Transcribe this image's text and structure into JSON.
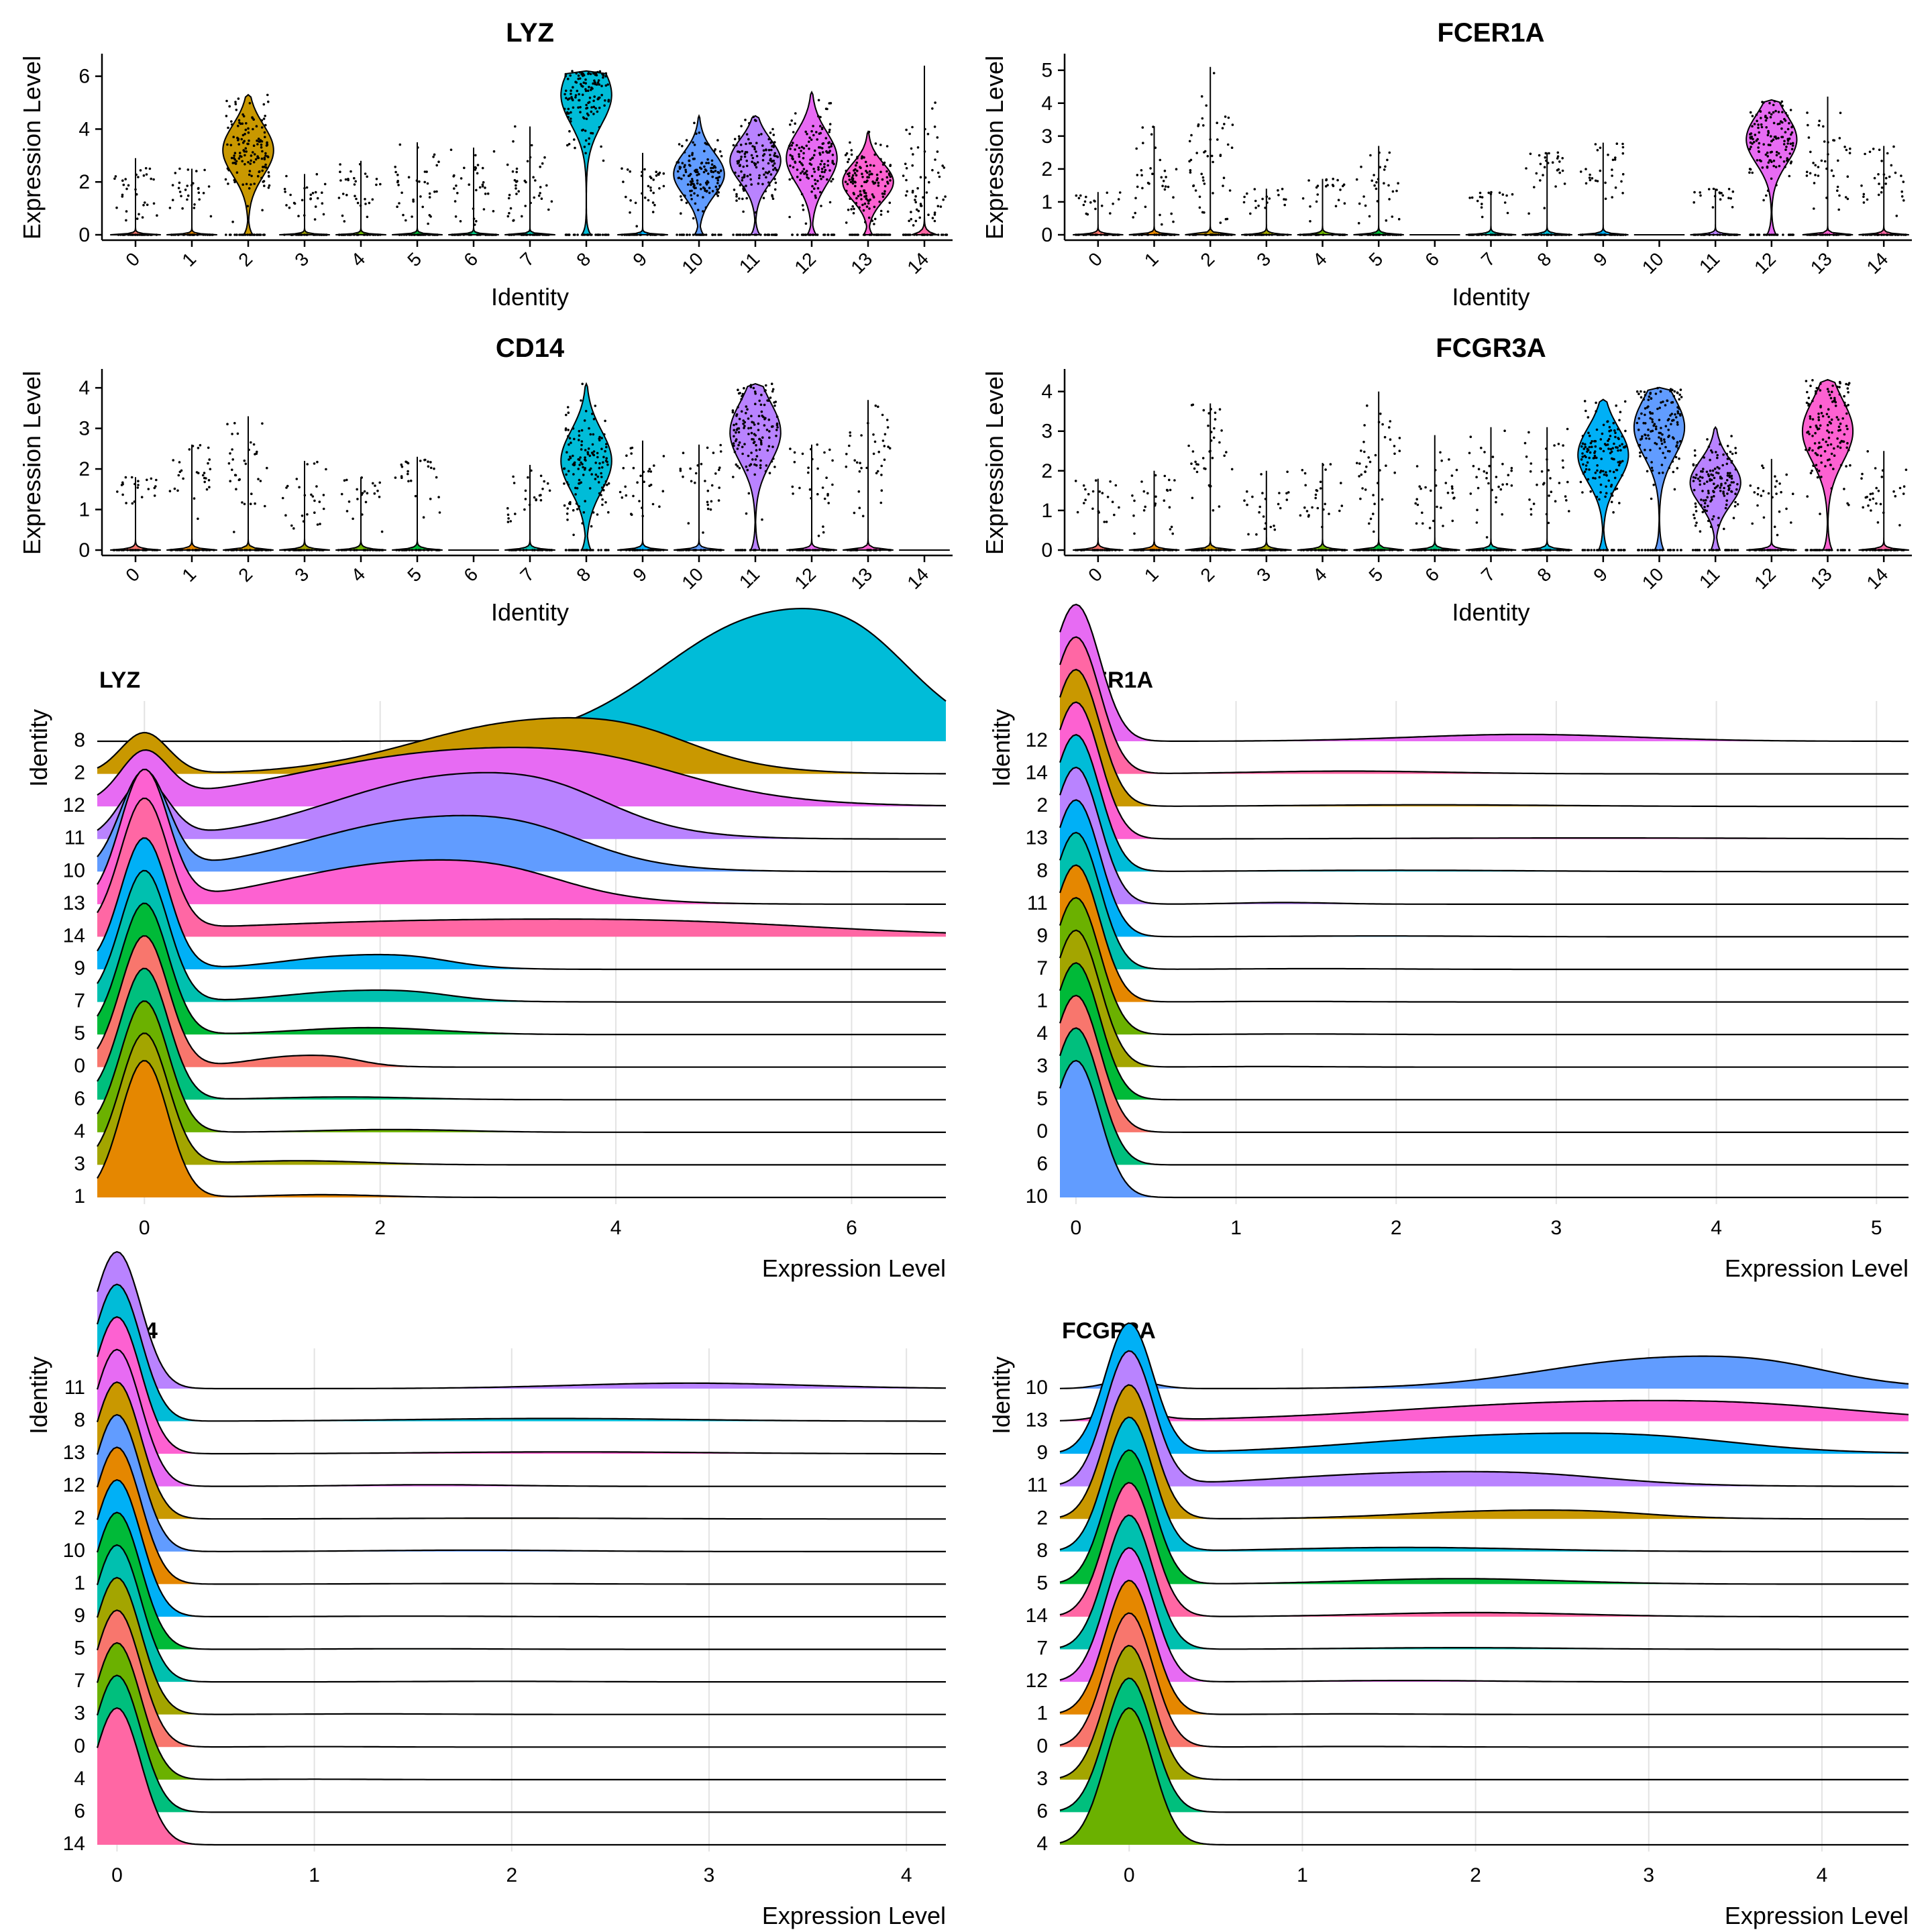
{
  "colors": {
    "0": "#F8766D",
    "1": "#E58700",
    "2": "#C99800",
    "3": "#A3A500",
    "4": "#6BB100",
    "5": "#00BA38",
    "6": "#00BF7D",
    "7": "#00C0AF",
    "8": "#00BCD8",
    "9": "#00B0F6",
    "10": "#619CFF",
    "11": "#B983FF",
    "12": "#E76BF3",
    "13": "#FD61D1",
    "14": "#FF67A4"
  },
  "chart_data": [
    {
      "type": "violin",
      "title": "LYZ",
      "xlabel": "Identity",
      "ylabel": "Expression Level",
      "categories": [
        "0",
        "1",
        "2",
        "3",
        "4",
        "5",
        "6",
        "7",
        "8",
        "9",
        "10",
        "11",
        "12",
        "13",
        "14"
      ],
      "ylim": [
        0,
        6.6
      ],
      "yticks": [
        0,
        2,
        4,
        6
      ],
      "max_values": [
        2.9,
        2.5,
        5.3,
        2.3,
        2.8,
        3.5,
        3.3,
        4.1,
        6.2,
        3.1,
        4.5,
        4.5,
        5.4,
        3.9,
        6.4
      ],
      "body_center": [
        0,
        0,
        3.2,
        0,
        0,
        0,
        0,
        0,
        5.3,
        0,
        2.3,
        2.8,
        2.9,
        2.0,
        0.3
      ],
      "point_center": [
        1.6,
        1.6,
        3.2,
        1.3,
        1.8,
        1.9,
        1.8,
        1.8,
        5.3,
        1.8,
        2.3,
        2.8,
        2.9,
        2.0,
        2.0
      ]
    },
    {
      "type": "violin",
      "title": "FCER1A",
      "xlabel": "Identity",
      "ylabel": "Expression Level",
      "categories": [
        "0",
        "1",
        "2",
        "3",
        "4",
        "5",
        "6",
        "7",
        "8",
        "9",
        "10",
        "11",
        "12",
        "13",
        "14"
      ],
      "ylim": [
        0,
        5.3
      ],
      "yticks": [
        0,
        1,
        2,
        3,
        4,
        5
      ],
      "max_values": [
        1.3,
        3.3,
        5.1,
        1.4,
        1.7,
        2.7,
        0,
        1.3,
        2.5,
        2.8,
        0,
        1.4,
        4.1,
        4.2,
        2.7
      ],
      "body_center": [
        0,
        0,
        0,
        0,
        0,
        0,
        0,
        0,
        0,
        0,
        0,
        0,
        2.9,
        0,
        0
      ],
      "point_center": [
        1.0,
        1.6,
        2.2,
        1.2,
        1.4,
        1.5,
        0,
        1.2,
        1.9,
        2.0,
        0,
        1.3,
        2.9,
        2.5,
        1.8
      ]
    },
    {
      "type": "violin",
      "title": "CD14",
      "xlabel": "Identity",
      "ylabel": "Expression Level",
      "categories": [
        "0",
        "1",
        "2",
        "3",
        "4",
        "5",
        "6",
        "7",
        "8",
        "9",
        "10",
        "11",
        "12",
        "13",
        "14"
      ],
      "ylim": [
        0,
        4.3
      ],
      "yticks": [
        0,
        1,
        2,
        3,
        4
      ],
      "max_values": [
        1.8,
        2.6,
        3.3,
        2.2,
        1.8,
        2.3,
        0,
        2.1,
        4.1,
        2.7,
        2.6,
        4.1,
        2.6,
        3.7,
        0
      ],
      "body_center": [
        0,
        0,
        0,
        0,
        0,
        0,
        0,
        0,
        2.2,
        0,
        0,
        2.9,
        0,
        0,
        0
      ],
      "point_center": [
        1.6,
        1.8,
        2.1,
        1.3,
        1.4,
        1.8,
        0,
        1.3,
        2.2,
        1.6,
        1.8,
        2.9,
        1.6,
        2.5,
        0
      ]
    },
    {
      "type": "violin",
      "title": "FCGR3A",
      "xlabel": "Identity",
      "ylabel": "Expression Level",
      "categories": [
        "0",
        "1",
        "2",
        "3",
        "4",
        "5",
        "6",
        "7",
        "8",
        "9",
        "10",
        "11",
        "12",
        "13",
        "14"
      ],
      "ylim": [
        0,
        4.4
      ],
      "yticks": [
        0,
        1,
        2,
        3,
        4
      ],
      "max_values": [
        1.8,
        2.0,
        3.7,
        2.0,
        2.2,
        4.0,
        2.9,
        3.1,
        3.1,
        3.8,
        4.1,
        3.1,
        2.3,
        4.3,
        2.5
      ],
      "body_center": [
        0,
        0,
        0,
        0,
        0,
        0,
        0,
        0,
        0,
        2.4,
        3.1,
        1.7,
        0,
        3.0,
        0
      ],
      "point_center": [
        1.4,
        1.4,
        2.3,
        1.2,
        1.3,
        2.1,
        1.5,
        1.8,
        1.8,
        2.4,
        3.1,
        1.7,
        1.5,
        3.0,
        1.5
      ]
    },
    {
      "type": "ridge",
      "title": "LYZ",
      "xlabel": "Expression Level",
      "ylabel": "Identity",
      "xlim": [
        -0.4,
        6.8
      ],
      "xticks": [
        0,
        2,
        4,
        6
      ],
      "order": [
        "1",
        "3",
        "4",
        "6",
        "0",
        "5",
        "7",
        "9",
        "14",
        "13",
        "10",
        "11",
        "12",
        "2",
        "8"
      ],
      "zero_height": [
        1.0,
        0.96,
        0.96,
        0.96,
        0.96,
        0.96,
        0.96,
        0.96,
        0.96,
        0.96,
        0.72,
        0.42,
        0.35,
        0.3,
        0.0
      ],
      "bump_center": [
        1.5,
        1.3,
        2.1,
        1.7,
        1.3,
        1.9,
        1.8,
        1.8,
        2.8,
        2.2,
        2.4,
        2.6,
        2.7,
        3.3,
        5.3
      ],
      "bump_width": [
        0.5,
        0.6,
        0.6,
        0.6,
        0.4,
        0.6,
        0.6,
        0.6,
        2.2,
        1.0,
        1.0,
        1.0,
        1.4,
        1.0,
        0.9
      ],
      "bump_height": [
        0.02,
        0.03,
        0.02,
        0.02,
        0.08,
        0.05,
        0.08,
        0.1,
        0.12,
        0.3,
        0.38,
        0.45,
        0.4,
        0.38,
        0.9
      ]
    },
    {
      "type": "ridge",
      "title": "FCER1A",
      "xlabel": "Expression Level",
      "ylabel": "Identity",
      "xlim": [
        -0.1,
        5.2
      ],
      "xticks": [
        0,
        1,
        2,
        3,
        4,
        5
      ],
      "order": [
        "10",
        "6",
        "0",
        "5",
        "3",
        "4",
        "1",
        "7",
        "9",
        "11",
        "8",
        "13",
        "2",
        "14",
        "12"
      ],
      "zero_height": [
        1.0,
        1.0,
        1.0,
        1.0,
        1.0,
        1.0,
        1.0,
        1.0,
        1.0,
        1.0,
        1.0,
        1.0,
        1.0,
        1.0,
        1.0
      ],
      "bump_center": [
        1.0,
        1.0,
        1.0,
        1.0,
        1.2,
        1.4,
        1.3,
        1.5,
        1.9,
        1.3,
        2.0,
        3.2,
        2.2,
        1.7,
        2.8
      ],
      "bump_width": [
        0.3,
        0.3,
        0.3,
        0.3,
        0.4,
        0.4,
        0.4,
        0.5,
        0.6,
        0.3,
        0.8,
        1.2,
        0.8,
        0.6,
        0.7
      ],
      "bump_height": [
        0,
        0,
        0,
        0,
        0.004,
        0.004,
        0.004,
        0.005,
        0.006,
        0.012,
        0.01,
        0.008,
        0.012,
        0.02,
        0.05
      ]
    },
    {
      "type": "ridge",
      "title": "CD14",
      "xlabel": "Expression Level",
      "ylabel": "Identity",
      "xlim": [
        -0.1,
        4.2
      ],
      "xticks": [
        0,
        1,
        2,
        3,
        4
      ],
      "order": [
        "14",
        "6",
        "4",
        "0",
        "3",
        "7",
        "5",
        "9",
        "1",
        "10",
        "2",
        "12",
        "13",
        "8",
        "11"
      ],
      "zero_height": [
        1.0,
        1.0,
        1.0,
        1.0,
        1.0,
        1.0,
        1.0,
        1.0,
        1.0,
        1.0,
        1.0,
        1.0,
        1.0,
        1.0,
        1.0
      ],
      "bump_center": [
        1.0,
        1.0,
        1.0,
        1.0,
        1.3,
        1.9,
        1.5,
        1.5,
        1.8,
        1.8,
        2.0,
        1.6,
        2.3,
        2.2,
        2.9
      ],
      "bump_width": [
        0.3,
        0.3,
        0.3,
        0.3,
        0.4,
        0.4,
        0.4,
        0.4,
        0.5,
        0.5,
        0.6,
        0.4,
        0.7,
        0.7,
        0.6
      ],
      "bump_height": [
        0,
        0,
        0.003,
        0.003,
        0.004,
        0.004,
        0.004,
        0.004,
        0.004,
        0.01,
        0.006,
        0.012,
        0.014,
        0.02,
        0.04
      ]
    },
    {
      "type": "ridge",
      "title": "FCGR3A",
      "xlabel": "Expression Level",
      "ylabel": "Identity",
      "xlim": [
        -0.4,
        4.5
      ],
      "xticks": [
        0,
        1,
        2,
        3,
        4
      ],
      "order": [
        "4",
        "6",
        "3",
        "0",
        "1",
        "12",
        "7",
        "14",
        "5",
        "8",
        "2",
        "11",
        "9",
        "13",
        "10"
      ],
      "zero_height": [
        1.0,
        0.98,
        0.98,
        0.98,
        0.98,
        0.98,
        0.98,
        0.98,
        0.98,
        0.98,
        0.98,
        0.98,
        0.95,
        0.08,
        0.06
      ],
      "bump_center": [
        1.2,
        1.2,
        1.2,
        1.3,
        1.3,
        1.6,
        1.9,
        2.0,
        1.9,
        1.6,
        2.2,
        1.7,
        2.3,
        2.7,
        3.1
      ],
      "bump_width": [
        0.3,
        0.3,
        0.3,
        0.4,
        0.4,
        0.5,
        0.6,
        0.6,
        0.6,
        0.7,
        0.6,
        0.8,
        0.9,
        1.1,
        0.7
      ],
      "bump_height": [
        0,
        0,
        0,
        0.004,
        0.004,
        0.01,
        0.012,
        0.03,
        0.04,
        0.03,
        0.06,
        0.1,
        0.14,
        0.14,
        0.22
      ]
    }
  ]
}
